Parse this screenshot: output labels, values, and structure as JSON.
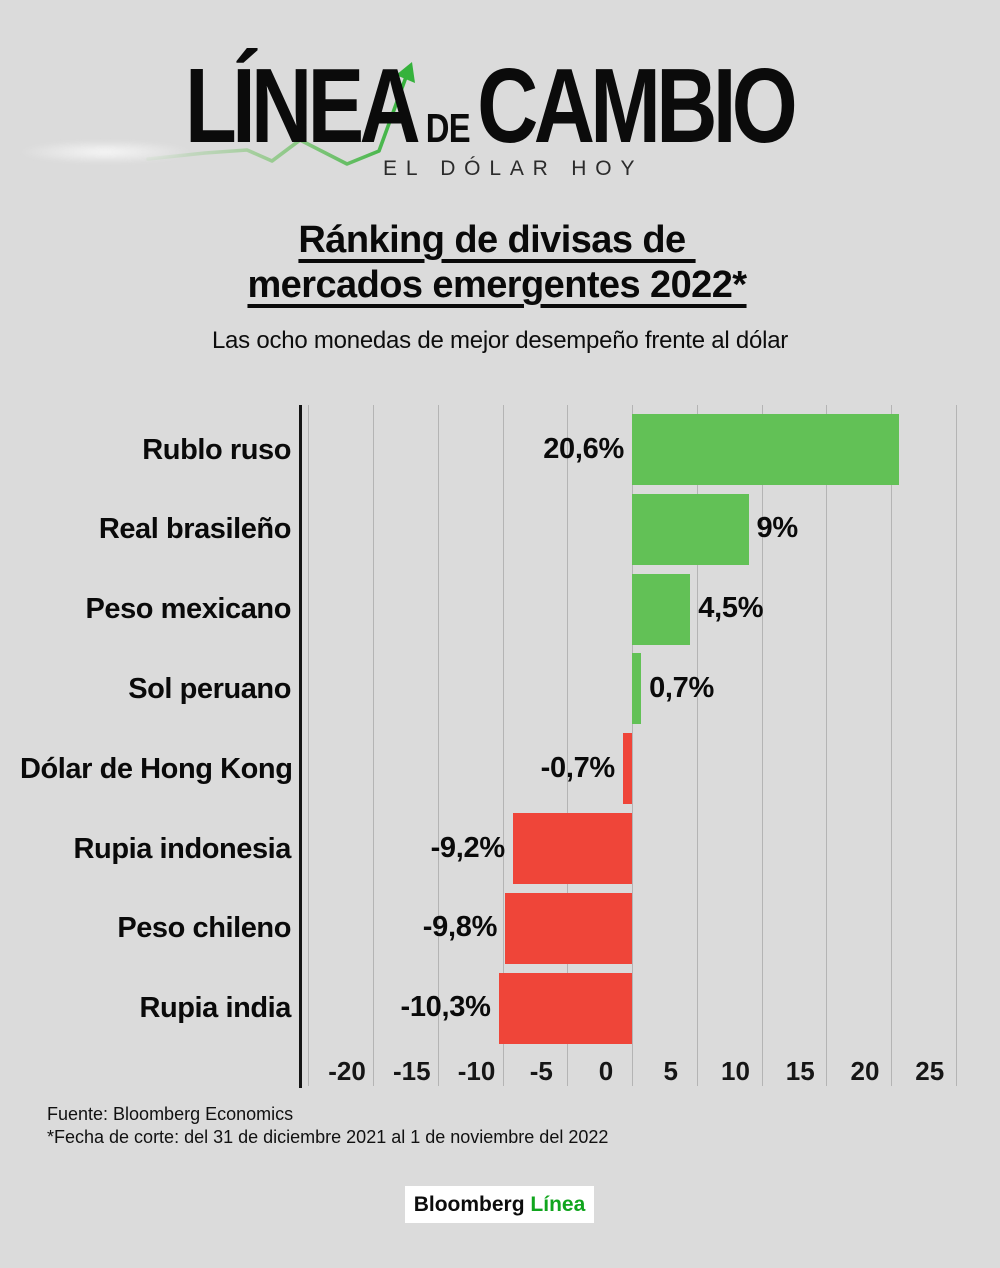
{
  "logo": {
    "word1": "LÍNEA",
    "word2": "DE",
    "word3": "CAMBIO",
    "tagline": "EL DÓLAR HOY",
    "line_color": "#35b23c"
  },
  "title": {
    "line1": "Ránking de divisas de ",
    "line2": "mercados emergentes 2022*",
    "subtitle": "Las ocho monedas de mejor desempeño frente al dólar"
  },
  "chart_data": {
    "type": "bar",
    "orientation": "horizontal",
    "categories": [
      "Rublo ruso",
      "Real brasileño",
      "Peso mexicano",
      "Sol peruano",
      "Dólar de Hong Kong",
      "Rupia indonesia",
      "Peso chileno",
      "Rupia india"
    ],
    "values": [
      20.6,
      9,
      4.5,
      0.7,
      -0.7,
      -9.2,
      -9.8,
      -10.3
    ],
    "value_labels": [
      "20,6%",
      "9%",
      "4,5%",
      "0,7%",
      "-0,7%",
      "-9,2%",
      "-9,8%",
      "-10,3%"
    ],
    "x_ticks": [
      "-20",
      "-15",
      "-10",
      "-5",
      "0",
      "5",
      "10",
      "15",
      "20",
      "25"
    ],
    "xlim": [
      -25.7,
      25.1
    ],
    "gridlines": "vertical, every 5 units from -25 to 25",
    "legend": "none",
    "positive_color": "#62c156",
    "negative_color": "#ef4539"
  },
  "footer": {
    "source": "Fuente: Bloomberg Economics",
    "cutoff": "*Fecha de corte: del 31 de diciembre 2021 al 1 de noviembre del 2022",
    "badge_word1": "Bloomberg",
    "badge_word2": "Línea",
    "badge_word2_color": "#10a51d"
  }
}
